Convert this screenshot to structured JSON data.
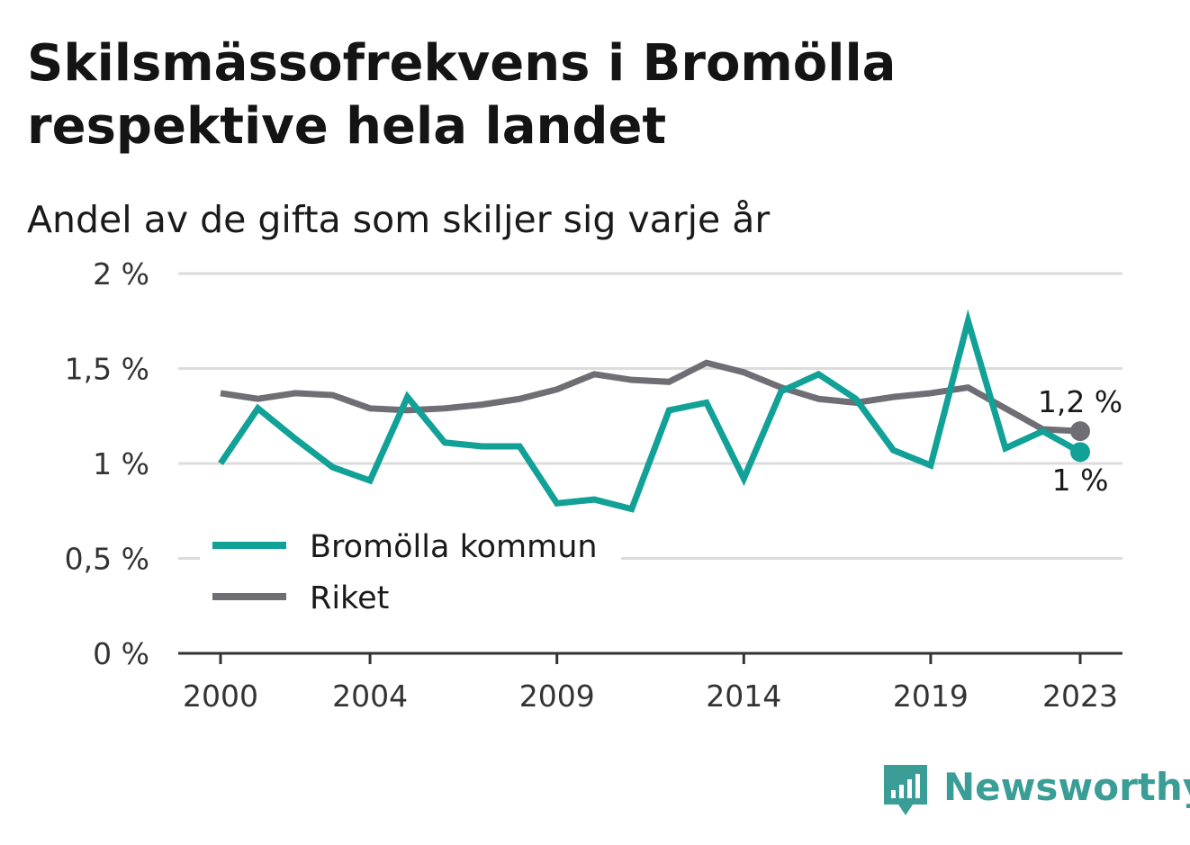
{
  "chart_data": {
    "type": "line",
    "title": "Skilsmässofrekvens i Bromölla respektive hela landet",
    "subtitle": "Andel av de gifta som skiljer sig varje år",
    "x": [
      2000,
      2001,
      2002,
      2003,
      2004,
      2005,
      2006,
      2007,
      2008,
      2009,
      2010,
      2011,
      2012,
      2013,
      2014,
      2015,
      2016,
      2017,
      2018,
      2019,
      2020,
      2021,
      2022,
      2023
    ],
    "x_ticks": [
      "2000",
      "2004",
      "2009",
      "2014",
      "2019",
      "2023"
    ],
    "y_ticks": [
      "0 %",
      "0,5 %",
      "1 %",
      "1,5 %",
      "2 %"
    ],
    "ylim": [
      0,
      2
    ],
    "grid": true,
    "legend_position": "bottom-left",
    "series": [
      {
        "name": "Bromölla kommun",
        "color": "#12a197",
        "values": [
          1.0,
          1.29,
          1.13,
          0.98,
          0.91,
          1.35,
          1.11,
          1.09,
          1.09,
          0.79,
          0.81,
          0.76,
          1.28,
          1.32,
          0.92,
          1.38,
          1.47,
          1.34,
          1.07,
          0.99,
          1.75,
          1.08,
          1.17,
          1.06
        ],
        "end_label": "1 %"
      },
      {
        "name": "Riket",
        "color": "#6f6e74",
        "values": [
          1.37,
          1.34,
          1.37,
          1.36,
          1.29,
          1.28,
          1.29,
          1.31,
          1.34,
          1.39,
          1.47,
          1.44,
          1.43,
          1.53,
          1.48,
          1.4,
          1.34,
          1.32,
          1.35,
          1.37,
          1.4,
          1.29,
          1.18,
          1.17
        ],
        "end_label": "1,2 %"
      }
    ]
  },
  "brand": {
    "name": "Newsworthy",
    "color": "#3a9d96"
  }
}
